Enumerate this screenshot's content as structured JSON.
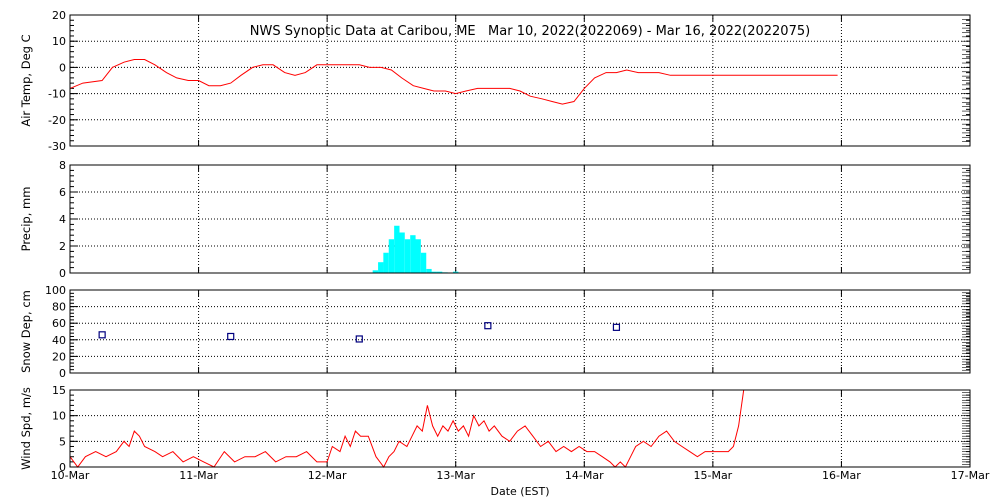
{
  "chart_data": {
    "title": "NWS Synoptic Data at Caribou, ME   Mar 10, 2022(2022069) - Mar 16, 2022(2022075)",
    "xlabel": "Date (EST)",
    "x_ticks": [
      "10-Mar",
      "11-Mar",
      "12-Mar",
      "13-Mar",
      "14-Mar",
      "15-Mar",
      "16-Mar",
      "17-Mar"
    ],
    "x_range_days": [
      10,
      17
    ],
    "grid": true,
    "panels": [
      {
        "type": "line",
        "ylabel": "Air Temp, Deg C",
        "ylim": [
          -30,
          20
        ],
        "yticks": [
          20,
          10,
          0,
          -10,
          -20,
          -30
        ],
        "color": "#ff0000",
        "x": [
          10.0,
          10.1,
          10.25,
          10.33,
          10.42,
          10.5,
          10.58,
          10.66,
          10.75,
          10.83,
          10.92,
          11.0,
          11.08,
          11.17,
          11.25,
          11.33,
          11.42,
          11.5,
          11.58,
          11.67,
          11.75,
          11.83,
          11.92,
          12.0,
          12.08,
          12.17,
          12.25,
          12.33,
          12.42,
          12.5,
          12.58,
          12.67,
          12.75,
          12.83,
          12.92,
          13.0,
          13.08,
          13.17,
          13.25,
          13.33,
          13.42,
          13.5,
          13.58,
          13.67,
          13.75,
          13.83,
          13.92,
          14.0,
          14.08,
          14.17,
          14.25,
          14.33,
          14.42,
          14.5,
          14.58,
          14.67,
          14.75,
          14.83,
          14.92,
          15.0,
          15.08,
          15.5,
          15.97
        ],
        "y": [
          -8,
          -6,
          -5,
          0,
          2,
          3,
          3,
          1,
          -2,
          -4,
          -5,
          -5,
          -7,
          -7,
          -6,
          -3,
          0,
          1,
          1,
          -2,
          -3,
          -2,
          1,
          1,
          1,
          1,
          1,
          0,
          0,
          -1,
          -4,
          -7,
          -8,
          -9,
          -9,
          -10,
          -9,
          -8,
          -8,
          -8,
          -8,
          -9,
          -11,
          -12,
          -13,
          -14,
          -13,
          -8,
          -4,
          -2,
          -2,
          -1,
          -2,
          -2,
          -2,
          -3,
          -3,
          -3,
          -3,
          -3,
          -3,
          -3,
          -3
        ]
      },
      {
        "type": "bar",
        "ylabel": "Precip, mm",
        "ylim": [
          0,
          8
        ],
        "yticks": [
          8,
          6,
          4,
          2,
          0
        ],
        "color": "#00ffff",
        "bar_width_days": 0.0417,
        "x": [
          12.375,
          12.417,
          12.458,
          12.5,
          12.542,
          12.583,
          12.625,
          12.667,
          12.708,
          12.75,
          12.792,
          12.833,
          12.875,
          12.917,
          13.0
        ],
        "y": [
          0.2,
          0.8,
          1.5,
          2.5,
          3.5,
          3.0,
          2.5,
          2.8,
          2.5,
          1.5,
          0.3,
          0.1,
          0.1,
          0.05,
          0.1
        ]
      },
      {
        "type": "scatter",
        "ylabel": "Snow Dep, cm",
        "ylim": [
          0,
          100
        ],
        "yticks": [
          100,
          80,
          60,
          40,
          20,
          0
        ],
        "color": "#00007f",
        "x": [
          10.25,
          11.25,
          12.25,
          13.25,
          14.25
        ],
        "y": [
          46,
          44,
          41,
          57,
          55
        ]
      },
      {
        "type": "line",
        "ylabel": "Wind Spd, m/s",
        "ylim": [
          0,
          15
        ],
        "yticks": [
          15,
          10,
          5,
          0
        ],
        "color": "#ff0000",
        "x": [
          10.0,
          10.06,
          10.12,
          10.2,
          10.28,
          10.36,
          10.42,
          10.46,
          10.5,
          10.54,
          10.58,
          10.66,
          10.72,
          10.8,
          10.88,
          10.96,
          11.04,
          11.12,
          11.2,
          11.28,
          11.36,
          11.44,
          11.52,
          11.6,
          11.68,
          11.76,
          11.84,
          11.92,
          12.0,
          12.04,
          12.1,
          12.14,
          12.18,
          12.22,
          12.26,
          12.32,
          12.38,
          12.44,
          12.48,
          12.52,
          12.56,
          12.62,
          12.66,
          12.7,
          12.74,
          12.78,
          12.82,
          12.86,
          12.9,
          12.94,
          12.98,
          13.02,
          13.06,
          13.1,
          13.14,
          13.18,
          13.22,
          13.26,
          13.3,
          13.36,
          13.42,
          13.48,
          13.54,
          13.6,
          13.66,
          13.72,
          13.78,
          13.84,
          13.9,
          13.96,
          14.02,
          14.08,
          14.14,
          14.2,
          14.24,
          14.28,
          14.32,
          14.36,
          14.4,
          14.46,
          14.52,
          14.58,
          14.64,
          14.7,
          14.76,
          14.82,
          14.88,
          14.94,
          15.0,
          15.06,
          15.12,
          15.16,
          15.2,
          15.24
        ],
        "y": [
          2,
          0,
          2,
          3,
          2,
          3,
          5,
          4,
          7,
          6,
          4,
          3,
          2,
          3,
          1,
          2,
          1,
          0,
          3,
          1,
          2,
          2,
          3,
          1,
          2,
          2,
          3,
          1,
          1,
          4,
          3,
          6,
          4,
          7,
          6,
          6,
          2,
          0,
          2,
          3,
          5,
          4,
          6,
          8,
          7,
          12,
          8,
          6,
          8,
          7,
          9,
          7,
          8,
          6,
          10,
          8,
          9,
          7,
          8,
          6,
          5,
          7,
          8,
          6,
          4,
          5,
          3,
          4,
          3,
          4,
          3,
          3,
          2,
          1,
          0,
          1,
          0,
          2,
          4,
          5,
          4,
          6,
          7,
          5,
          4,
          3,
          2,
          3,
          3,
          3,
          3,
          4,
          8,
          15
        ]
      }
    ]
  }
}
